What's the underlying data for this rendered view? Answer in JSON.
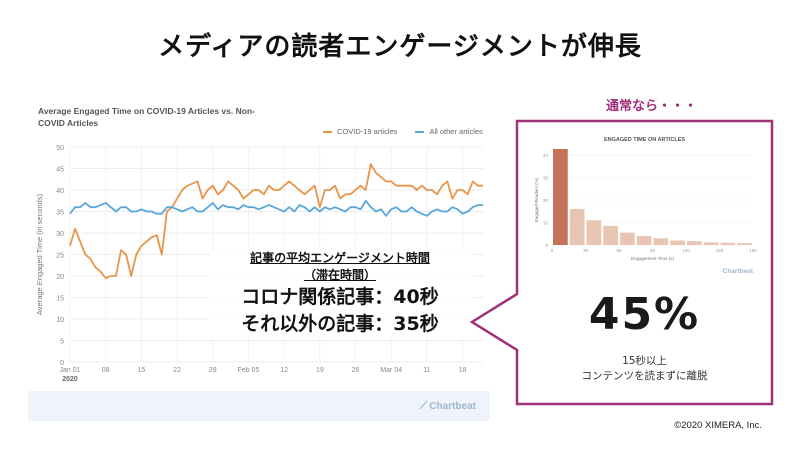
{
  "slide": {
    "title": "メディアの読者エンゲージメントが伸長",
    "copyright": "©2020 XIMERA, Inc."
  },
  "annotation": {
    "heading_line1": "記事の平均エンゲージメント時間",
    "heading_line2": "（滞在時間）",
    "covid_line": "コロナ関係記事：40秒",
    "other_line": "それ以外の記事：35秒"
  },
  "callout": {
    "label": "通常なら・・・",
    "percent": "45%",
    "sub_line1": "15秒以上",
    "sub_line2": "コンテンツを読まずに離脱",
    "logo_text": "Chartbeat",
    "frame_color": "#a0307a"
  },
  "colors": {
    "covid": "#e8954b",
    "other": "#5aa7dc",
    "bar": "#e9c5b3",
    "bar_first": "#c4735a"
  },
  "chart_data": [
    {
      "type": "line",
      "title": "Average Engaged Time on COVID-19 Articles vs. Non-COVID Articles",
      "xlabel": "",
      "ylabel": "Average Engaged Time (in seconds)",
      "ylim": [
        0,
        50
      ],
      "y_ticks": [
        0,
        5,
        10,
        15,
        20,
        25,
        30,
        35,
        40,
        45,
        50
      ],
      "x_tick_labels": [
        "Jan 01",
        "08",
        "15",
        "22",
        "29",
        "Feb 05",
        "12",
        "19",
        "26",
        "Mar 04",
        "11",
        "18"
      ],
      "x_tick_sublabel": "2020",
      "grid": true,
      "legend_position": "top-right",
      "logo_text": "Chartbeat",
      "x_days": 82,
      "series": [
        {
          "name": "COVID-19 articles",
          "values": [
            27,
            31,
            28,
            25,
            24,
            22,
            21,
            19.5,
            20,
            20,
            26,
            25,
            20,
            25,
            27,
            28,
            29,
            29.5,
            25,
            35,
            36,
            38,
            40,
            41,
            41.5,
            42,
            38,
            40,
            41,
            39,
            40,
            42,
            41,
            40,
            38,
            39,
            40,
            40,
            39,
            41,
            40,
            40,
            41,
            42,
            41,
            40,
            39,
            40,
            41,
            36,
            40,
            40,
            41,
            38,
            39,
            39,
            40,
            41,
            40,
            46,
            44,
            43,
            42,
            42,
            41,
            41,
            41,
            41,
            40,
            41,
            40,
            40,
            39,
            41,
            42,
            38,
            40,
            40,
            39,
            42,
            41,
            41
          ]
        },
        {
          "name": "All other articles",
          "values": [
            34.5,
            36,
            36,
            37,
            36,
            36,
            36.5,
            37,
            36,
            35,
            36,
            36,
            35,
            35,
            35.5,
            35,
            35,
            34.5,
            34.5,
            36,
            36,
            35.5,
            35,
            35.5,
            36,
            35,
            35,
            36,
            37,
            35.5,
            36.5,
            36,
            36,
            35.5,
            36.5,
            36,
            36,
            35.5,
            36,
            36.5,
            36,
            35.5,
            35,
            36,
            35,
            36.5,
            36,
            35,
            36,
            35,
            36,
            35.5,
            36,
            35.5,
            35,
            36,
            36,
            35.5,
            37.5,
            36,
            35,
            35.5,
            34,
            35.5,
            36,
            35,
            35,
            36,
            35,
            34.5,
            34,
            35,
            35.5,
            35,
            35,
            36,
            35.5,
            34.5,
            35,
            36,
            36.5,
            36.5
          ]
        }
      ]
    },
    {
      "type": "bar",
      "title": "ENGAGED TIME ON ARTICLES",
      "xlabel": "Engagement Time (s)",
      "ylabel": "Engaged Readers (%)",
      "ylim": [
        0,
        40
      ],
      "y_ticks": [
        0,
        10,
        20,
        30,
        40
      ],
      "x_ticks": [
        0,
        30,
        60,
        90,
        120,
        150,
        180
      ],
      "bin_width": 15,
      "bins_start": [
        0,
        15,
        30,
        45,
        60,
        75,
        90,
        105,
        120,
        135,
        150,
        165
      ],
      "values": [
        45,
        16,
        11,
        8.5,
        5.5,
        4,
        3,
        2,
        1.7,
        1.2,
        1,
        0.8
      ]
    }
  ]
}
